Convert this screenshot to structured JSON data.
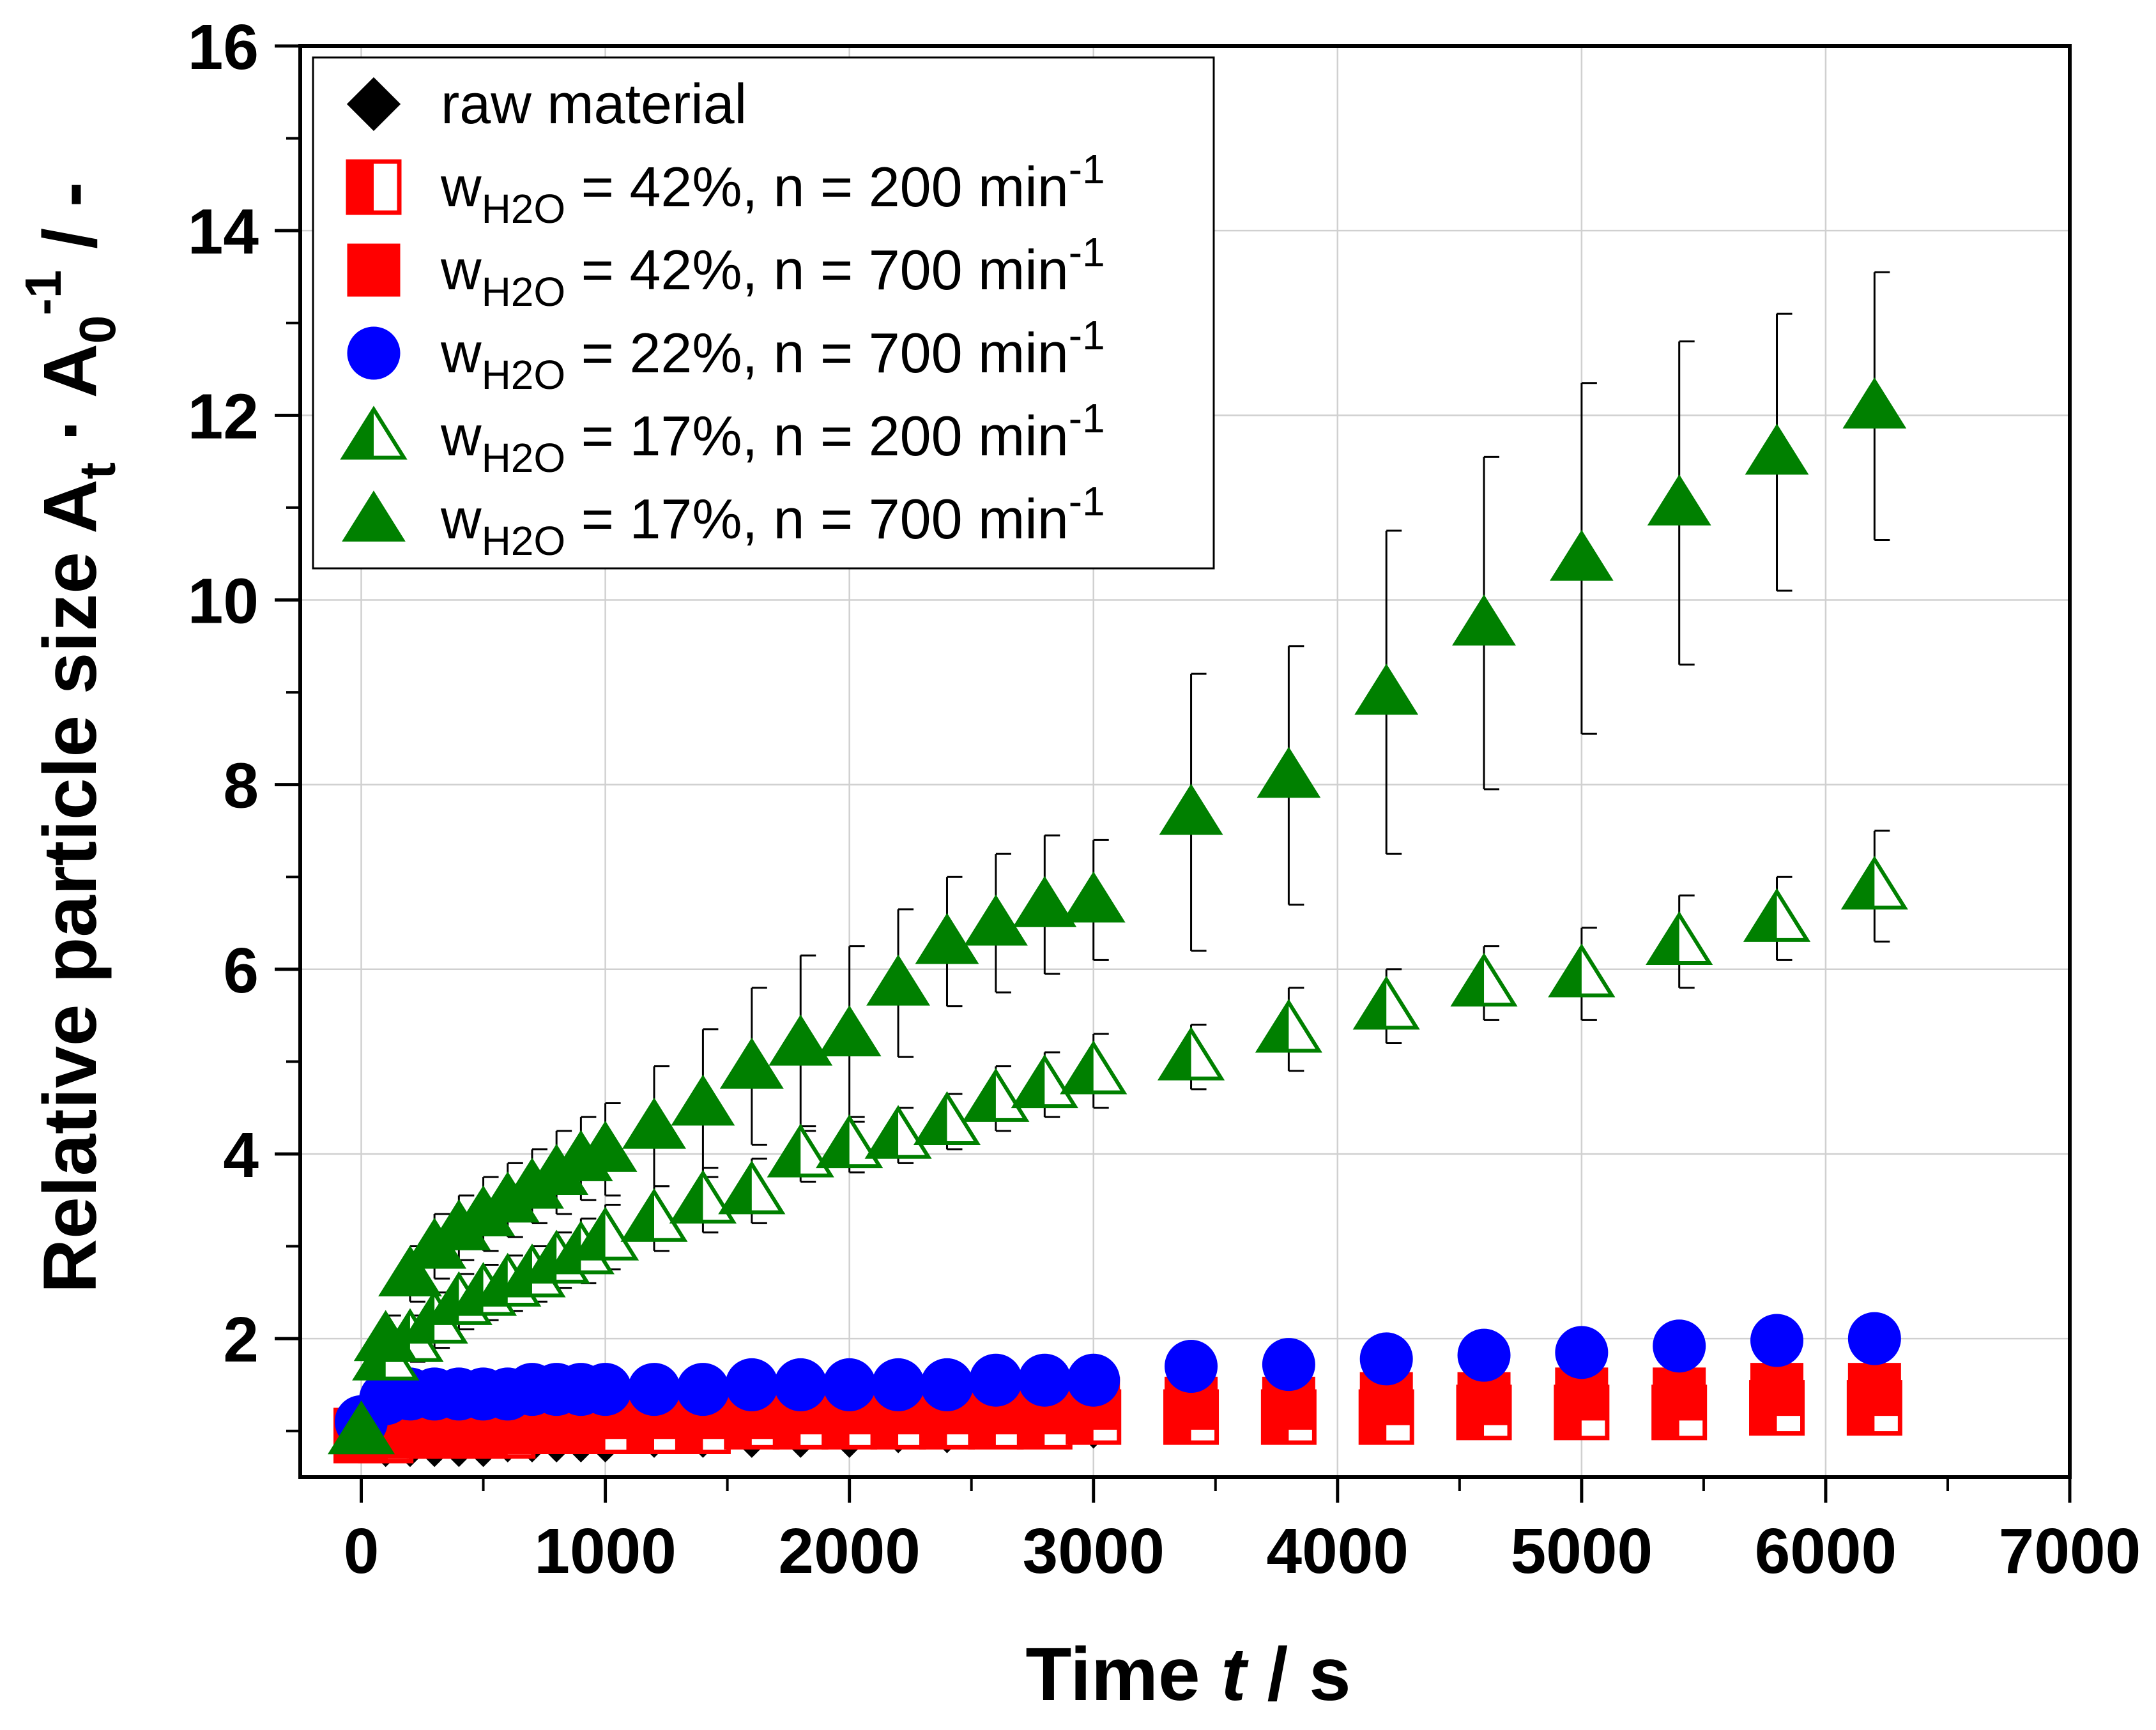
{
  "chart_data": {
    "type": "scatter",
    "xlabel": {
      "pre": "Time ",
      "var": "t",
      "post": " / s"
    },
    "ylabel": {
      "pre": "Relative particle size A",
      "sub1": "t",
      "mid": " · A",
      "sub2": "0",
      "sup": "-1",
      "post": " / -"
    },
    "xlim": [
      -250,
      7000
    ],
    "ylim": [
      0.5,
      16
    ],
    "xticks": [
      0,
      1000,
      2000,
      3000,
      4000,
      5000,
      6000,
      7000
    ],
    "yticks": [
      2,
      4,
      6,
      8,
      10,
      12,
      14,
      16
    ],
    "grid": true,
    "legend_position": "top-left",
    "series": [
      {
        "name": "raw material",
        "legend": {
          "main": "raw material"
        },
        "marker": "diamond",
        "fill": "full",
        "color": "#000000",
        "x": [
          0,
          100,
          200,
          300,
          400,
          500,
          600,
          700,
          800,
          900,
          1000,
          1200,
          1400,
          1600,
          1800,
          2000,
          2200,
          2400,
          2600,
          2800,
          3000,
          3400,
          3800,
          4200,
          4600,
          5000,
          5400,
          5800,
          6200
        ],
        "y": [
          1.0,
          0.9,
          0.9,
          0.9,
          0.9,
          0.9,
          0.95,
          0.95,
          0.95,
          0.95,
          0.95,
          1.0,
          1.0,
          1.0,
          1.0,
          1.0,
          1.05,
          1.05,
          1.1,
          1.1,
          1.1,
          1.15,
          1.2,
          1.25,
          1.3,
          1.4,
          1.45,
          1.45,
          1.45
        ]
      },
      {
        "name": "wH2O = 42%, n = 200 min-1",
        "legend": {
          "pre": "w",
          "sub": "H2O",
          "main": " = 42%, n = 200 min",
          "sup": "-1"
        },
        "marker": "square",
        "fill": "half",
        "color": "#ff0000",
        "x": [
          0,
          100,
          200,
          300,
          400,
          500,
          600,
          700,
          800,
          900,
          1000,
          1200,
          1400,
          1600,
          1800,
          2000,
          2200,
          2400,
          2600,
          2800,
          3000,
          3400,
          3800,
          4200,
          4600,
          5000,
          5400,
          5800,
          6200
        ],
        "y": [
          0.95,
          0.95,
          1.0,
          1.0,
          1.0,
          1.0,
          1.0,
          1.05,
          1.05,
          1.05,
          1.05,
          1.05,
          1.05,
          1.1,
          1.1,
          1.1,
          1.1,
          1.1,
          1.1,
          1.1,
          1.15,
          1.15,
          1.15,
          1.15,
          1.2,
          1.2,
          1.2,
          1.25,
          1.25
        ]
      },
      {
        "name": "wH2O = 42%, n = 700 min-1",
        "legend": {
          "pre": "w",
          "sub": "H2O",
          "main": " = 42%, n = 700 min",
          "sup": "-1"
        },
        "marker": "square",
        "fill": "full",
        "color": "#ff0000",
        "x": [
          0,
          100,
          200,
          300,
          400,
          500,
          600,
          700,
          800,
          900,
          1000,
          1200,
          1400,
          1600,
          1800,
          2000,
          2200,
          2400,
          2600,
          2800,
          3000,
          3400,
          3800,
          4200,
          4600,
          5000,
          5400,
          5800,
          6200
        ],
        "y": [
          0.95,
          1.05,
          1.1,
          1.1,
          1.1,
          1.15,
          1.15,
          1.15,
          1.2,
          1.2,
          1.2,
          1.2,
          1.2,
          1.2,
          1.25,
          1.25,
          1.25,
          1.25,
          1.25,
          1.25,
          1.3,
          1.3,
          1.3,
          1.35,
          1.35,
          1.4,
          1.4,
          1.45,
          1.45
        ]
      },
      {
        "name": "wH2O = 22%, n = 700 min-1",
        "legend": {
          "pre": "w",
          "sub": "H2O",
          "main": " = 22%, n = 700 min",
          "sup": "-1"
        },
        "marker": "circle",
        "fill": "full",
        "color": "#0000ff",
        "x": [
          0,
          100,
          200,
          300,
          400,
          500,
          600,
          700,
          800,
          900,
          1000,
          1200,
          1400,
          1600,
          1800,
          2000,
          2200,
          2400,
          2600,
          2800,
          3000,
          3400,
          3800,
          4200,
          4600,
          5000,
          5400,
          5800,
          6200
        ],
        "y": [
          1.1,
          1.35,
          1.4,
          1.4,
          1.4,
          1.4,
          1.4,
          1.45,
          1.45,
          1.45,
          1.45,
          1.45,
          1.45,
          1.5,
          1.5,
          1.5,
          1.5,
          1.5,
          1.55,
          1.55,
          1.55,
          1.7,
          1.72,
          1.78,
          1.82,
          1.85,
          1.92,
          1.98,
          2.0
        ]
      },
      {
        "name": "wH2O = 17%, n = 200 min-1",
        "legend": {
          "pre": "w",
          "sub": "H2O",
          "main": " = 17%, n = 200 min",
          "sup": "-1"
        },
        "marker": "triangle",
        "fill": "half",
        "color": "#008000",
        "x": [
          0,
          100,
          200,
          300,
          400,
          500,
          600,
          700,
          800,
          900,
          1000,
          1200,
          1400,
          1600,
          1800,
          2000,
          2200,
          2400,
          2600,
          2800,
          3000,
          3400,
          3800,
          4200,
          4600,
          5000,
          5400,
          5800,
          6200
        ],
        "y": [
          1.0,
          1.8,
          2.0,
          2.2,
          2.4,
          2.5,
          2.6,
          2.7,
          2.85,
          2.95,
          3.1,
          3.3,
          3.5,
          3.6,
          4.0,
          4.1,
          4.2,
          4.35,
          4.6,
          4.75,
          4.9,
          5.05,
          5.35,
          5.6,
          5.85,
          5.95,
          6.3,
          6.55,
          6.9
        ],
        "err": [
          0,
          0.2,
          0.25,
          0.3,
          0.3,
          0.3,
          0.3,
          0.3,
          0.3,
          0.35,
          0.35,
          0.35,
          0.35,
          0.35,
          0.3,
          0.3,
          0.3,
          0.3,
          0.35,
          0.35,
          0.4,
          0.35,
          0.45,
          0.4,
          0.4,
          0.5,
          0.5,
          0.45,
          0.6
        ]
      },
      {
        "name": "wH2O = 17%, n = 700 min-1",
        "legend": {
          "pre": "w",
          "sub": "H2O",
          "main": " = 17%, n = 700 min",
          "sup": "-1"
        },
        "marker": "triangle",
        "fill": "full",
        "color": "#008000",
        "x": [
          0,
          100,
          200,
          300,
          400,
          500,
          600,
          700,
          800,
          900,
          1000,
          1200,
          1400,
          1600,
          1800,
          2000,
          2200,
          2400,
          2600,
          2800,
          3000,
          3400,
          3800,
          4200,
          4600,
          5000,
          5400,
          5800,
          6200
        ],
        "y": [
          1.0,
          2.0,
          2.7,
          3.0,
          3.2,
          3.35,
          3.5,
          3.65,
          3.8,
          3.95,
          4.05,
          4.3,
          4.55,
          4.95,
          5.2,
          5.3,
          5.85,
          6.3,
          6.5,
          6.7,
          6.75,
          7.7,
          8.1,
          9.0,
          9.75,
          10.45,
          11.05,
          11.6,
          12.1
        ],
        "err": [
          0,
          0.25,
          0.3,
          0.35,
          0.35,
          0.4,
          0.4,
          0.4,
          0.45,
          0.45,
          0.5,
          0.65,
          0.8,
          0.85,
          0.95,
          0.95,
          0.8,
          0.7,
          0.75,
          0.75,
          0.65,
          1.5,
          1.4,
          1.75,
          1.8,
          1.9,
          1.75,
          1.5,
          1.45
        ]
      }
    ]
  }
}
